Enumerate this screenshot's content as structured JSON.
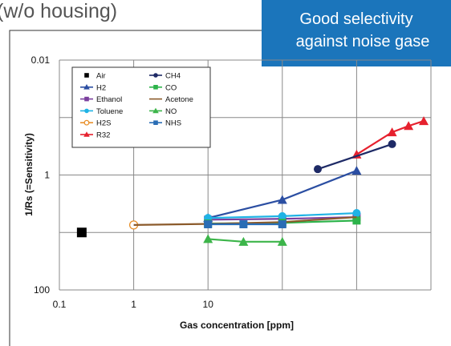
{
  "chart_data": {
    "type": "line",
    "subtitle": "(w/o housing)",
    "annotation": [
      "Good selectivity",
      "against noise gase"
    ],
    "ylabel": "1/Rs (=Sensitivity)",
    "xlabel": "Gas concentration [ppm]",
    "xlog": true,
    "ylog": true,
    "y_inverted": true,
    "grid": true,
    "xlim": [
      0.1,
      10000
    ],
    "ylim": [
      0.01,
      100
    ],
    "xticks": [
      0.1,
      1,
      10,
      {
        "value": 100,
        "label": null
      },
      {
        "value": 1000,
        "label": null
      },
      {
        "value": 10000,
        "label": null
      }
    ],
    "yticks": [
      0.01,
      {
        "value": 0.1,
        "label": null
      },
      1,
      {
        "value": 10,
        "label": null
      },
      100
    ],
    "legend": "upper left",
    "series": [
      {
        "name": "Air",
        "color": "#000000",
        "marker": "square",
        "line": false,
        "x": [
          0.2
        ],
        "values": [
          10
        ]
      },
      {
        "name": "H2",
        "color": "#2b4ea2",
        "marker": "triangle",
        "x": [
          10,
          100,
          1000
        ],
        "values": [
          5.6,
          2.7,
          0.84
        ]
      },
      {
        "name": "Ethanol",
        "color": "#7b3f9e",
        "marker": "square",
        "x": [
          10,
          100,
          1000
        ],
        "values": [
          6.0,
          5.8,
          5.4
        ]
      },
      {
        "name": "Toluene",
        "color": "#1fb3e5",
        "marker": "circle",
        "x": [
          10,
          100,
          1000
        ],
        "values": [
          5.6,
          5.2,
          4.6
        ]
      },
      {
        "name": "H2S",
        "color": "#e8902a",
        "marker": "open-circle",
        "x": [
          1
        ],
        "values": [
          7.4
        ]
      },
      {
        "name": "R32",
        "color": "#e6212e",
        "marker": "triangle",
        "x": [
          1000,
          3000,
          5000,
          8000
        ],
        "values": [
          0.44,
          0.18,
          0.14,
          0.115
        ]
      },
      {
        "name": "CH4",
        "color": "#1e2a66",
        "marker": "circle",
        "x": [
          300,
          3000
        ],
        "values": [
          0.79,
          0.29
        ]
      },
      {
        "name": "CO",
        "color": "#2db34a",
        "marker": "square",
        "x": [
          10,
          100,
          1000
        ],
        "values": [
          7.0,
          6.8,
          6.2
        ]
      },
      {
        "name": "Acetone",
        "color": "#8b5a2b",
        "marker": "none",
        "x": [
          1,
          10,
          100,
          1000
        ],
        "values": [
          7.4,
          7.1,
          6.6,
          5.4
        ]
      },
      {
        "name": "NO",
        "color": "#3cb54a",
        "marker": "triangle",
        "x": [
          10,
          30,
          100
        ],
        "values": [
          13,
          14.5,
          14.5
        ]
      },
      {
        "name": "NHS",
        "color": "#2a6db5",
        "marker": "square",
        "x": [
          10,
          30,
          100
        ],
        "values": [
          7.2,
          7.2,
          7.2
        ]
      }
    ]
  }
}
